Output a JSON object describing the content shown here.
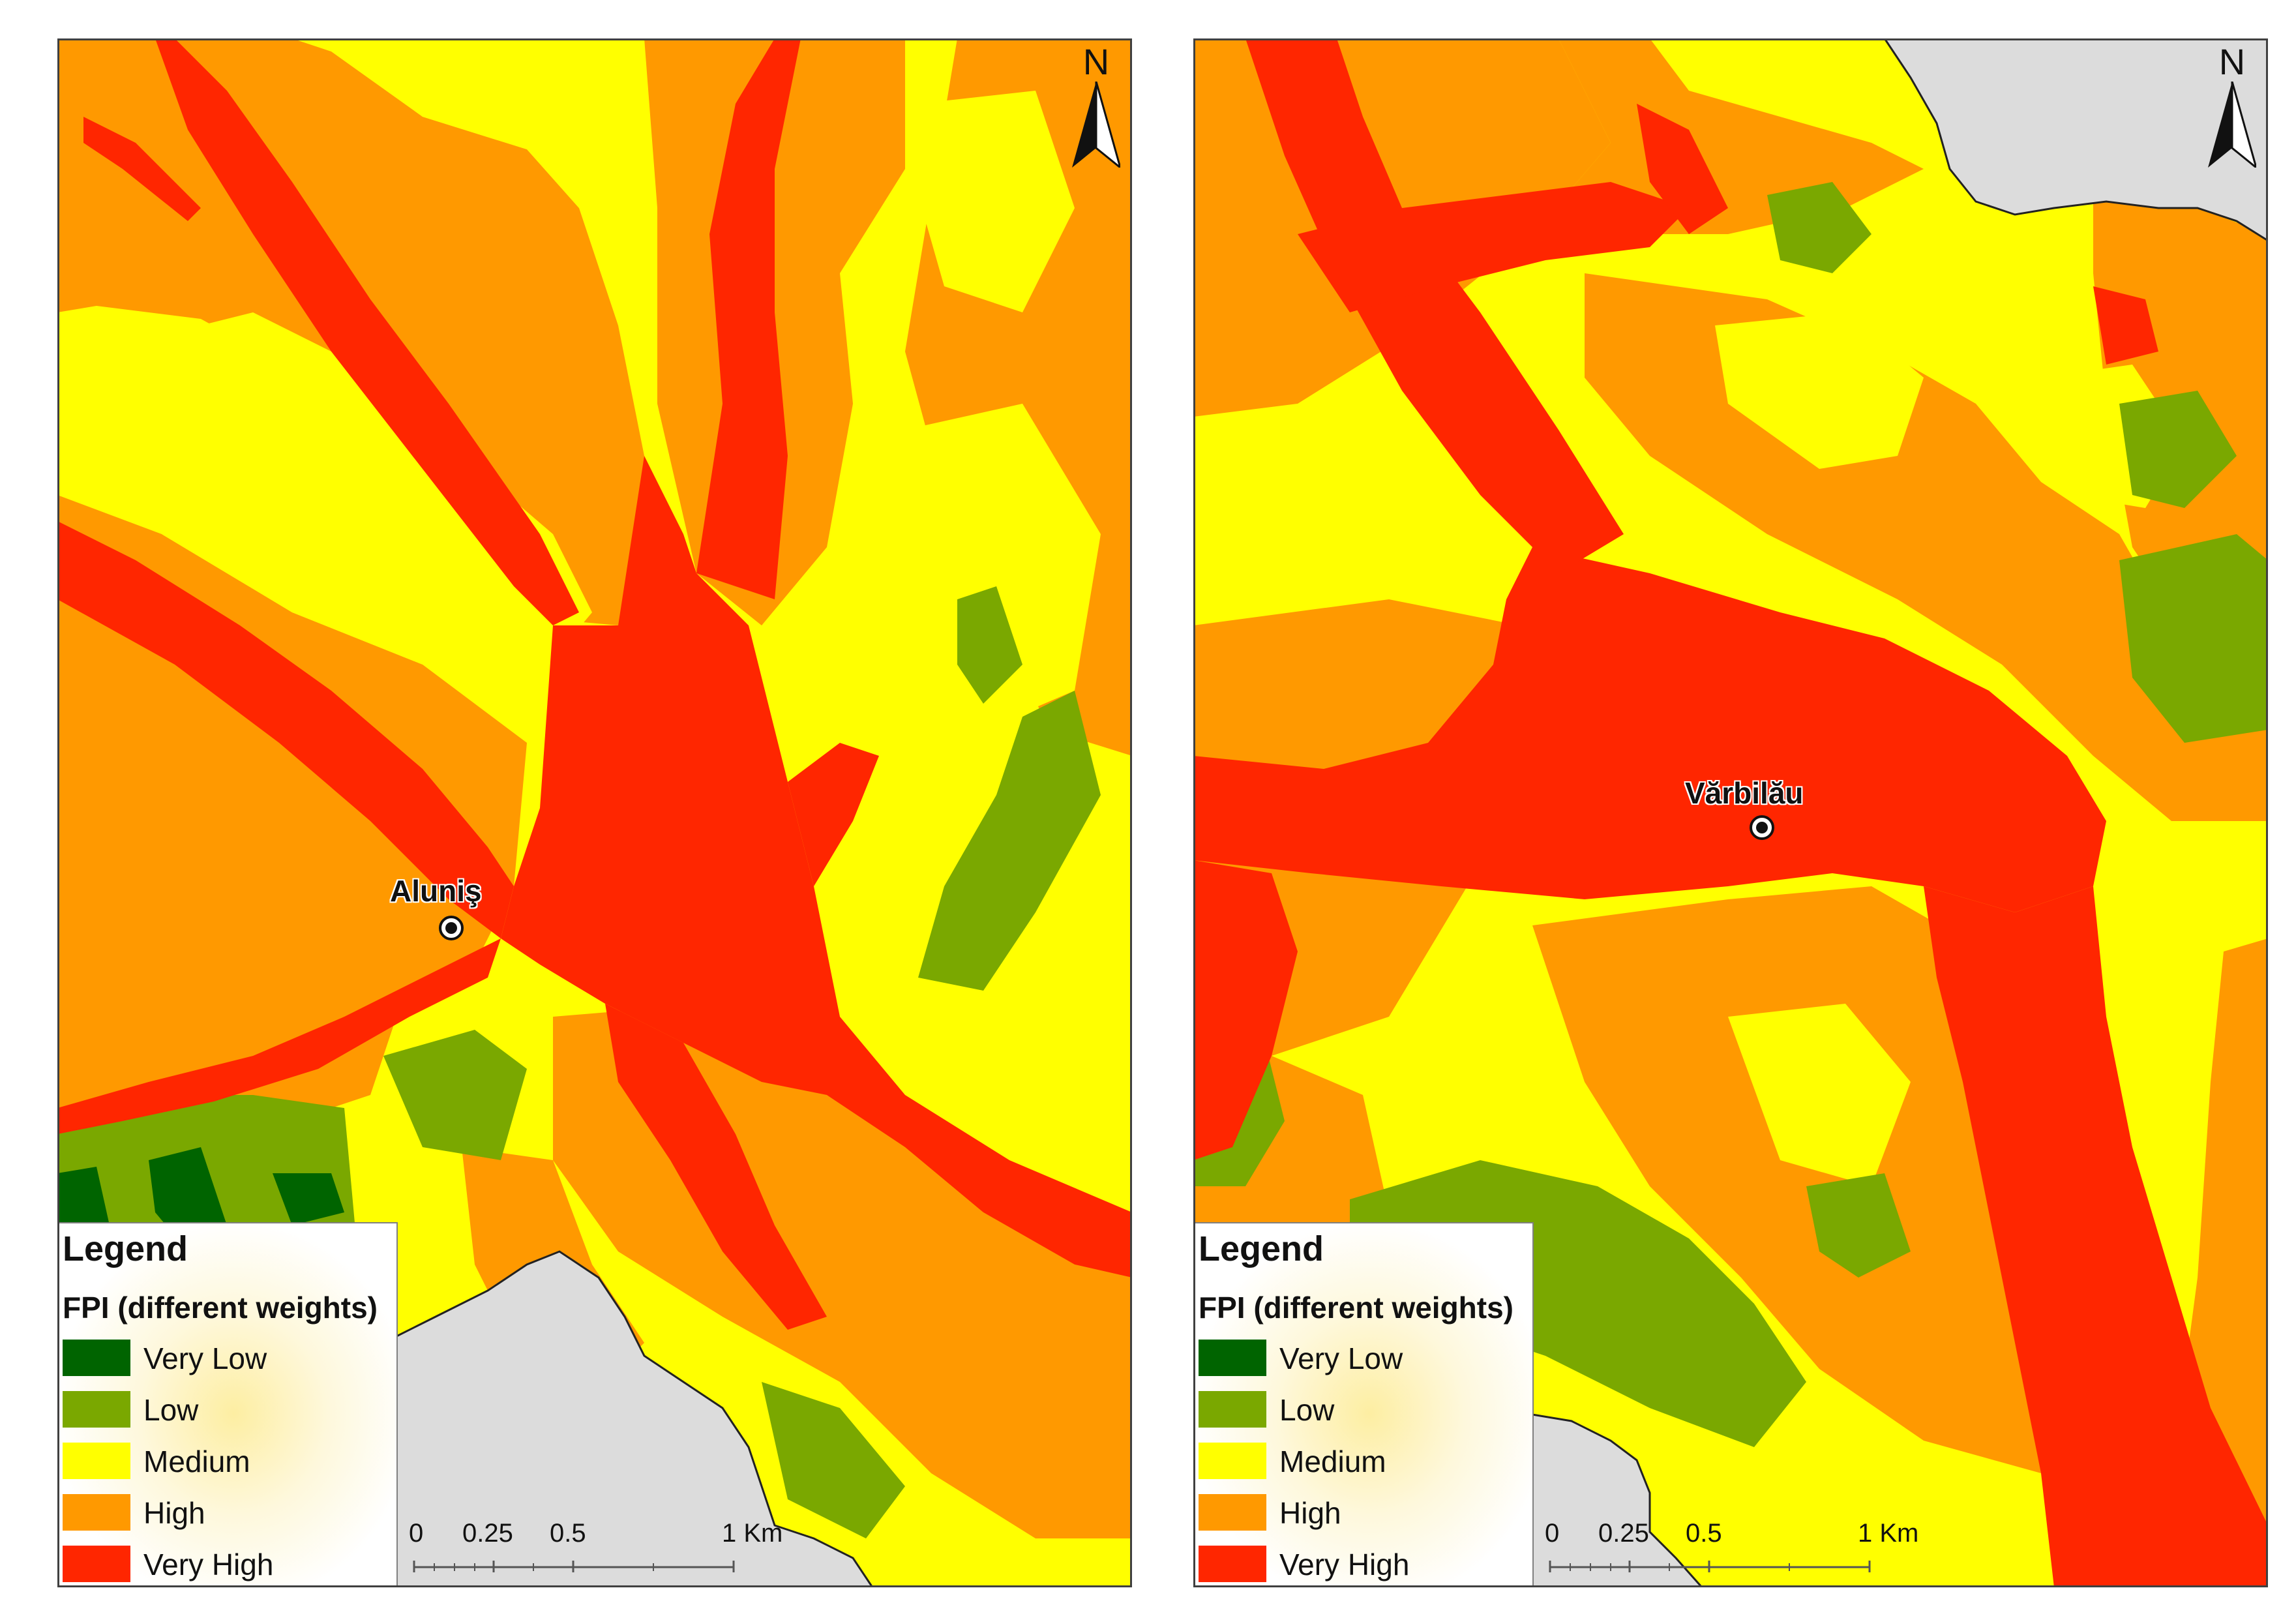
{
  "maps": [
    {
      "town": "Aluniş",
      "north_label": "N",
      "legend": {
        "title": "Legend",
        "subtitle": "FPI (different weights)",
        "items": [
          {
            "label": "Very Low",
            "color": "#006400"
          },
          {
            "label": "Low",
            "color": "#7aa800"
          },
          {
            "label": "Medium",
            "color": "#ffff00"
          },
          {
            "label": "High",
            "color": "#ff9900"
          },
          {
            "label": "Very High",
            "color": "#ff2600"
          }
        ]
      },
      "scale": {
        "ticks": [
          "0",
          "0.25",
          "0.5",
          "1 Km"
        ]
      }
    },
    {
      "town": "Vărbilău",
      "north_label": "N",
      "legend": {
        "title": "Legend",
        "subtitle": "FPI (different weights)",
        "items": [
          {
            "label": "Very Low",
            "color": "#006400"
          },
          {
            "label": "Low",
            "color": "#7aa800"
          },
          {
            "label": "Medium",
            "color": "#ffff00"
          },
          {
            "label": "High",
            "color": "#ff9900"
          },
          {
            "label": "Very High",
            "color": "#ff2600"
          }
        ]
      },
      "scale": {
        "ticks": [
          "0",
          "0.25",
          "0.5",
          "1 Km"
        ]
      }
    }
  ],
  "colors": {
    "very_low": "#006400",
    "low": "#7aa800",
    "medium": "#ffff00",
    "high": "#ff9900",
    "very_high": "#ff2600",
    "outside_area": "#dcdcdc"
  }
}
